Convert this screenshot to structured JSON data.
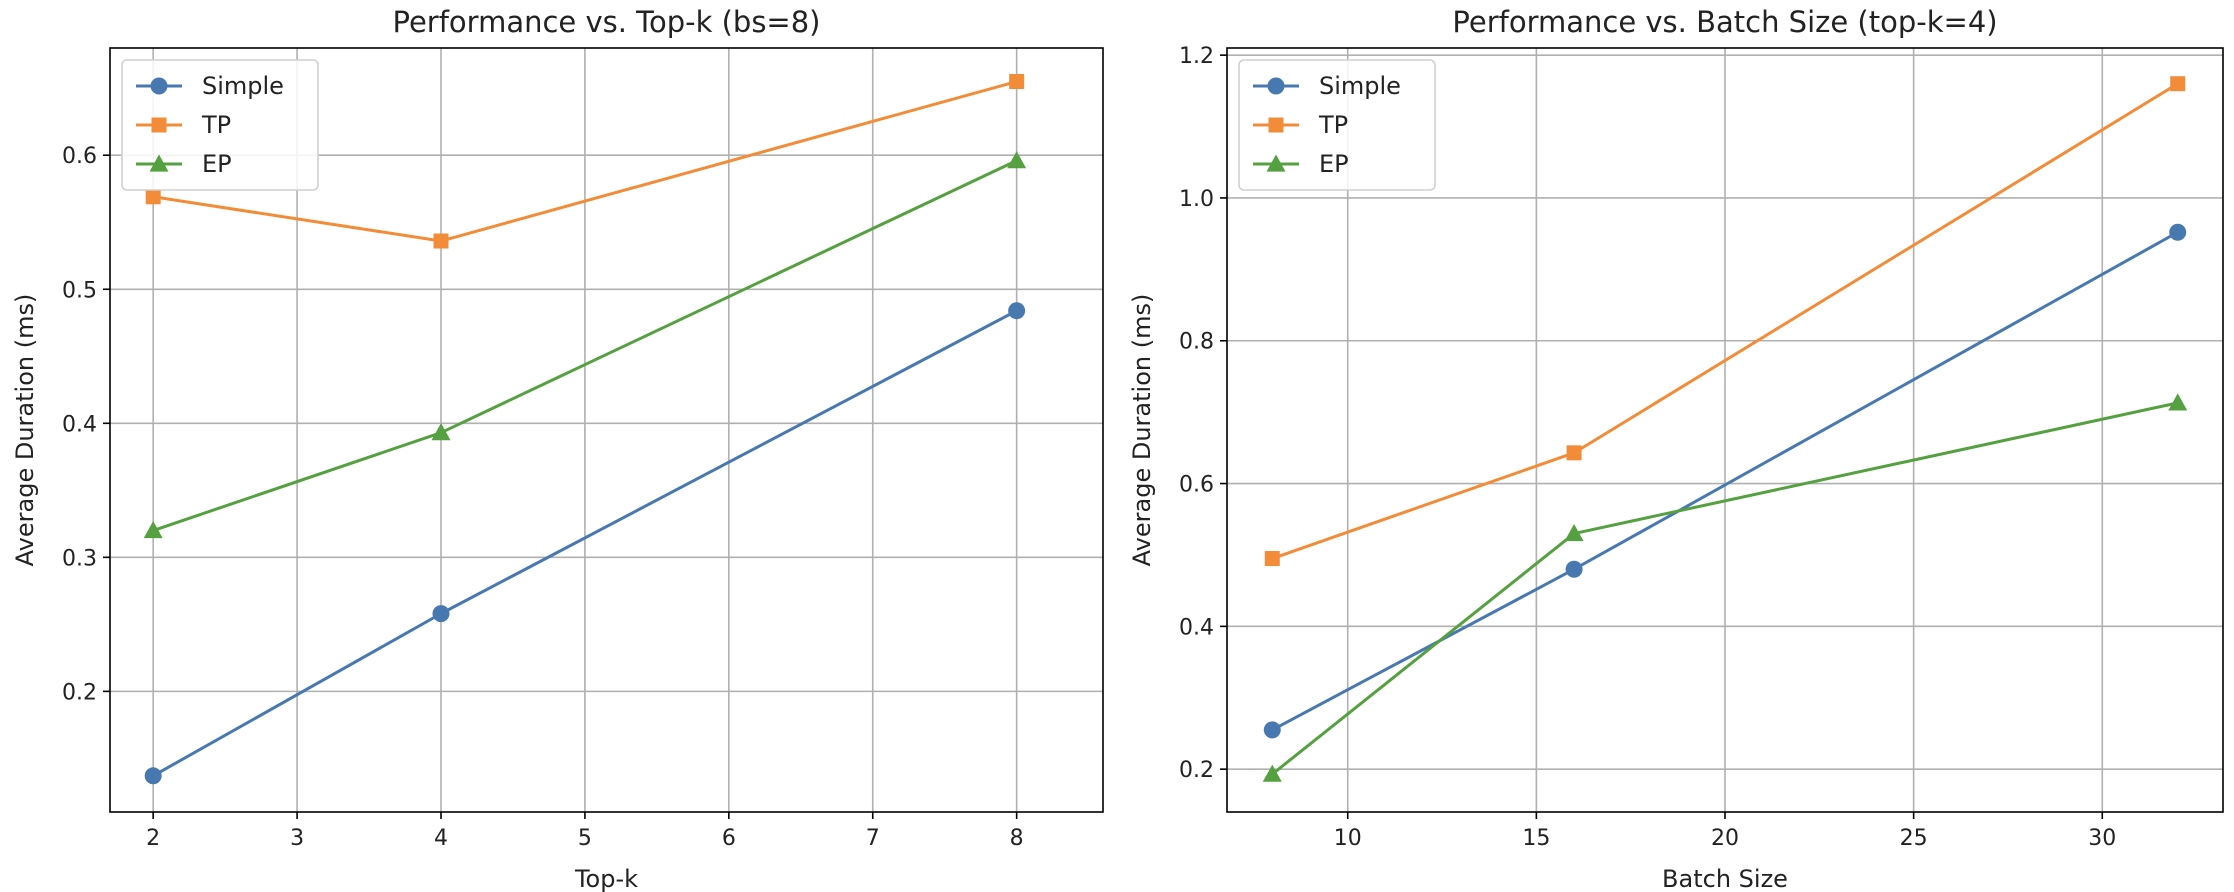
{
  "chart_data": [
    {
      "type": "line",
      "title": "Performance vs. Top-k (bs=8)",
      "xlabel": "Top-k",
      "ylabel": "Average Duration (ms)",
      "x": [
        2,
        4,
        8
      ],
      "xlim": [
        1.7,
        8.6
      ],
      "ylim": [
        0.11,
        0.68
      ],
      "xticks": [
        2,
        3,
        4,
        5,
        6,
        7,
        8
      ],
      "yticks": [
        0.2,
        0.3,
        0.4,
        0.5,
        0.6
      ],
      "xtick_labels": [
        "2",
        "3",
        "4",
        "5",
        "6",
        "7",
        "8"
      ],
      "ytick_labels": [
        "0.2",
        "0.3",
        "0.4",
        "0.5",
        "0.6"
      ],
      "grid": true,
      "legend": "top-left",
      "series": [
        {
          "name": "Simple",
          "values": [
            0.137,
            0.258,
            0.484
          ],
          "color": "#4878b0",
          "marker": "circle"
        },
        {
          "name": "TP",
          "values": [
            0.569,
            0.536,
            0.655
          ],
          "color": "#f28c38",
          "marker": "square"
        },
        {
          "name": "EP",
          "values": [
            0.32,
            0.393,
            0.596
          ],
          "color": "#55a040",
          "marker": "triangle"
        }
      ]
    },
    {
      "type": "line",
      "title": "Performance vs. Batch Size (top-k=4)",
      "xlabel": "Batch Size",
      "ylabel": "Average Duration (ms)",
      "x": [
        8,
        16,
        32
      ],
      "xlim": [
        6.8,
        33.2
      ],
      "ylim": [
        0.14,
        1.21
      ],
      "xticks": [
        10,
        15,
        20,
        25,
        30
      ],
      "yticks": [
        0.2,
        0.4,
        0.6,
        0.8,
        1.0,
        1.2
      ],
      "xtick_labels": [
        "10",
        "15",
        "20",
        "25",
        "30"
      ],
      "ytick_labels": [
        "0.2",
        "0.4",
        "0.6",
        "0.8",
        "1.0",
        "1.2"
      ],
      "grid": true,
      "legend": "top-left",
      "series": [
        {
          "name": "Simple",
          "values": [
            0.255,
            0.48,
            0.952
          ],
          "color": "#4878b0",
          "marker": "circle"
        },
        {
          "name": "TP",
          "values": [
            0.495,
            0.643,
            1.16
          ],
          "color": "#f28c38",
          "marker": "square"
        },
        {
          "name": "EP",
          "values": [
            0.193,
            0.53,
            0.713
          ],
          "color": "#55a040",
          "marker": "triangle"
        }
      ]
    }
  ]
}
